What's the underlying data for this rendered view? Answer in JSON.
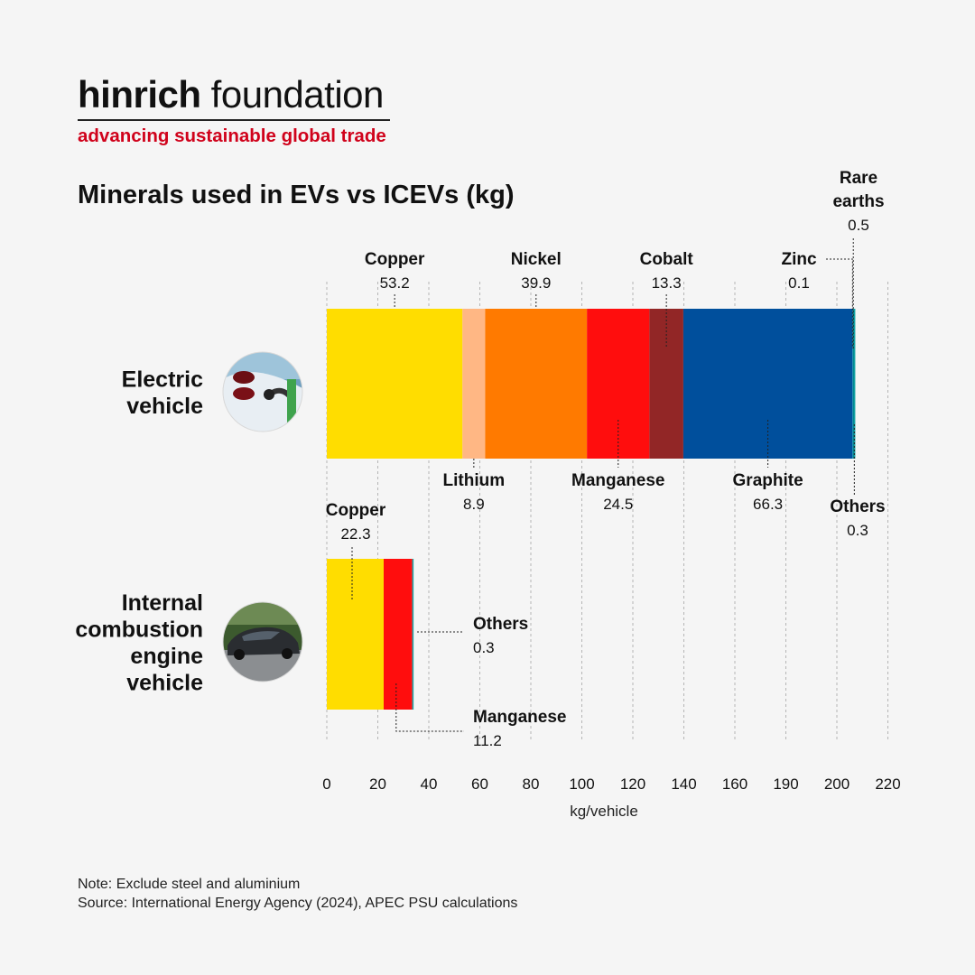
{
  "logo": {
    "name_bold": "hinrich",
    "name_light": " foundation",
    "tagline": "advancing sustainable global trade"
  },
  "title": "Minerals used in EVs vs ICEVs (kg)",
  "note": "Note: Exclude steel and aluminium",
  "source": "Source: International Energy Agency (2024), APEC PSU calculations",
  "colors": {
    "Copper": "#ffdd00",
    "Lithium": "#ffb784",
    "Nickel": "#ff7a00",
    "Manganese": "#ff0d0d",
    "Cobalt": "#922626",
    "Graphite": "#004f9c",
    "Zinc": "#1a9bd7",
    "Rare earths": "#00838f",
    "Others": "#15a3a3"
  },
  "row_images": {
    "ev": "electric-car-charging-photo",
    "icev": "dark-sedan-car-photo"
  },
  "chart_data": {
    "type": "bar",
    "orientation": "horizontal",
    "stacked": true,
    "categories": [
      "Electric vehicle",
      "Internal combustion engine vehicle"
    ],
    "category_labels": [
      [
        "Electric",
        "vehicle"
      ],
      [
        "Internal",
        "combustion",
        "engine",
        "vehicle"
      ]
    ],
    "series": [
      {
        "name": "Copper",
        "values": [
          53.2,
          22.3
        ]
      },
      {
        "name": "Lithium",
        "values": [
          8.9,
          null
        ]
      },
      {
        "name": "Nickel",
        "values": [
          39.9,
          null
        ]
      },
      {
        "name": "Manganese",
        "values": [
          24.5,
          11.2
        ]
      },
      {
        "name": "Cobalt",
        "values": [
          13.3,
          null
        ]
      },
      {
        "name": "Graphite",
        "values": [
          66.3,
          null
        ]
      },
      {
        "name": "Zinc",
        "values": [
          0.1,
          null
        ]
      },
      {
        "name": "Rare earths",
        "values": [
          0.5,
          null
        ]
      },
      {
        "name": "Others",
        "values": [
          0.3,
          0.3
        ]
      }
    ],
    "xlabel": "kg/vehicle",
    "ticks": [
      0,
      20,
      40,
      60,
      80,
      100,
      120,
      140,
      160,
      190,
      200,
      220
    ],
    "xlim": [
      0,
      220
    ],
    "grid": true
  }
}
